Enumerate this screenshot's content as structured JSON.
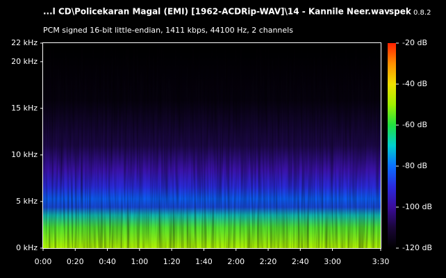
{
  "chart_data": {
    "type": "spectrogram",
    "title": "...l CD\\Policekaran Magal (EMI) [1962-ACDRip-WAV]\\14 - Kannile Neer.wav",
    "app_name": "spek",
    "app_version": "0.8.2",
    "subtitle": "PCM signed 16-bit little-endian, 1411 kbps, 44100 Hz, 2 channels",
    "xlim": [
      0,
      210
    ],
    "xticks": [
      {
        "value": 0,
        "label": "0:00"
      },
      {
        "value": 20,
        "label": "0:20"
      },
      {
        "value": 40,
        "label": "0:40"
      },
      {
        "value": 60,
        "label": "1:00"
      },
      {
        "value": 80,
        "label": "1:20"
      },
      {
        "value": 100,
        "label": "1:40"
      },
      {
        "value": 120,
        "label": "2:00"
      },
      {
        "value": 140,
        "label": "2:20"
      },
      {
        "value": 160,
        "label": "2:40"
      },
      {
        "value": 180,
        "label": "3:00"
      },
      {
        "value": 210,
        "label": "3:30"
      }
    ],
    "ylim": [
      0,
      22
    ],
    "yticks": [
      {
        "value": 0,
        "label": "0 kHz"
      },
      {
        "value": 5,
        "label": "5 kHz"
      },
      {
        "value": 10,
        "label": "10 kHz"
      },
      {
        "value": 15,
        "label": "15 kHz"
      },
      {
        "value": 20,
        "label": "20 kHz"
      },
      {
        "value": 22,
        "label": "22 kHz"
      }
    ],
    "clim": [
      -120,
      -20
    ],
    "cticks": [
      {
        "value": -20,
        "label": "-20 dB"
      },
      {
        "value": -40,
        "label": "-40 dB"
      },
      {
        "value": -60,
        "label": "-60 dB"
      },
      {
        "value": -80,
        "label": "-80 dB"
      },
      {
        "value": -100,
        "label": "-100 dB"
      },
      {
        "value": -120,
        "label": "-120 dB"
      }
    ],
    "colormap": [
      "#000000",
      "#1a0638",
      "#3a0c9a",
      "#2a2ae0",
      "#0a70ff",
      "#00d0d0",
      "#20e040",
      "#a0f000",
      "#f0e000",
      "#ff9000",
      "#ff2000"
    ]
  }
}
